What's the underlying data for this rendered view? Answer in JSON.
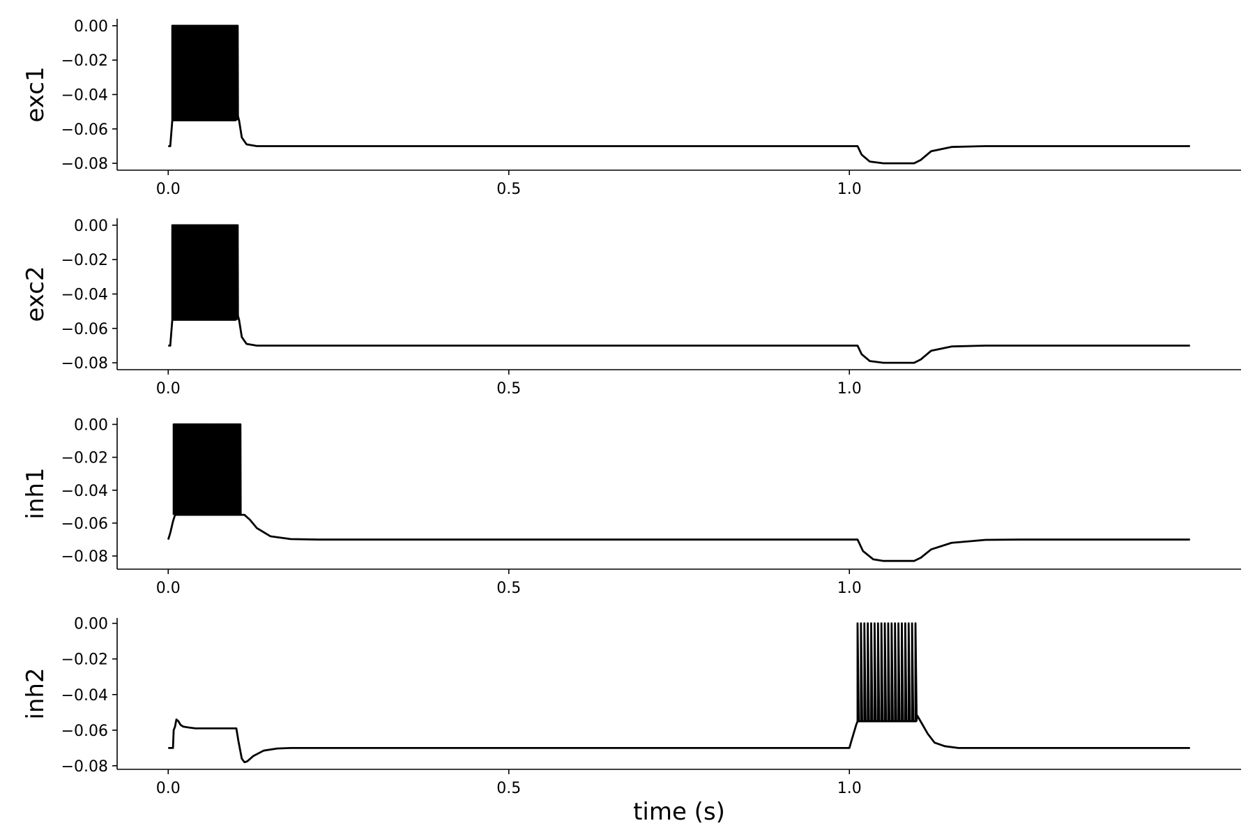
{
  "chart_data": [
    {
      "type": "line",
      "ylabel": "exc1",
      "xlabel": "",
      "xlim": [
        -0.075,
        1.575
      ],
      "ylim": [
        -0.084,
        0.004
      ],
      "xticks": [
        0.0,
        0.5,
        1.0
      ],
      "xtick_labels": [
        "0.0",
        "0.5",
        "1.0"
      ],
      "yticks": [
        0.0,
        -0.02,
        -0.04,
        -0.06,
        -0.08
      ],
      "ytick_labels": [
        "0.00",
        "−0.02",
        "−0.04",
        "−0.06",
        "−0.08"
      ],
      "series": [
        {
          "name": "exc1",
          "x": [
            0.0,
            0.003,
            0.006,
            0.01,
            0.099,
            0.102,
            0.104,
            0.108,
            0.115,
            0.13,
            1.0,
            1.012,
            1.018,
            1.03,
            1.05,
            1.08,
            1.095,
            1.105,
            1.12,
            1.15,
            1.2,
            1.5
          ],
          "y": [
            -0.07,
            -0.07,
            -0.055,
            -0.055,
            -0.055,
            -0.052,
            -0.055,
            -0.065,
            -0.069,
            -0.07,
            -0.07,
            -0.07,
            -0.075,
            -0.079,
            -0.08,
            -0.08,
            -0.08,
            -0.078,
            -0.073,
            -0.0705,
            -0.07,
            -0.07
          ]
        }
      ],
      "spike_bursts": [
        {
          "start": 0.006,
          "end": 0.102,
          "peak": 0.0,
          "trough": -0.055,
          "count": 90
        }
      ]
    },
    {
      "type": "line",
      "ylabel": "exc2",
      "xlabel": "",
      "xlim": [
        -0.075,
        1.575
      ],
      "ylim": [
        -0.084,
        0.004
      ],
      "xticks": [
        0.0,
        0.5,
        1.0
      ],
      "xtick_labels": [
        "0.0",
        "0.5",
        "1.0"
      ],
      "yticks": [
        0.0,
        -0.02,
        -0.04,
        -0.06,
        -0.08
      ],
      "ytick_labels": [
        "0.00",
        "−0.02",
        "−0.04",
        "−0.06",
        "−0.08"
      ],
      "series": [
        {
          "name": "exc2",
          "x": [
            0.0,
            0.003,
            0.006,
            0.01,
            0.099,
            0.102,
            0.104,
            0.108,
            0.115,
            0.13,
            1.0,
            1.012,
            1.018,
            1.03,
            1.05,
            1.08,
            1.095,
            1.105,
            1.12,
            1.15,
            1.2,
            1.5
          ],
          "y": [
            -0.07,
            -0.07,
            -0.055,
            -0.055,
            -0.055,
            -0.052,
            -0.055,
            -0.065,
            -0.069,
            -0.07,
            -0.07,
            -0.07,
            -0.075,
            -0.079,
            -0.08,
            -0.08,
            -0.08,
            -0.078,
            -0.073,
            -0.0705,
            -0.07,
            -0.07
          ]
        }
      ],
      "spike_bursts": [
        {
          "start": 0.006,
          "end": 0.102,
          "peak": 0.0,
          "trough": -0.055,
          "count": 90
        }
      ]
    },
    {
      "type": "line",
      "ylabel": "inh1",
      "xlabel": "",
      "xlim": [
        -0.075,
        1.575
      ],
      "ylim": [
        -0.088,
        0.004
      ],
      "xticks": [
        0.0,
        0.5,
        1.0
      ],
      "xtick_labels": [
        "0.0",
        "0.5",
        "1.0"
      ],
      "yticks": [
        0.0,
        -0.02,
        -0.04,
        -0.06,
        -0.08
      ],
      "ytick_labels": [
        "0.00",
        "−0.02",
        "−0.04",
        "−0.06",
        "−0.08"
      ],
      "series": [
        {
          "name": "inh1",
          "x": [
            0.0,
            0.003,
            0.007,
            0.01,
            0.106,
            0.112,
            0.12,
            0.13,
            0.15,
            0.18,
            0.22,
            1.0,
            1.012,
            1.02,
            1.035,
            1.05,
            1.08,
            1.095,
            1.105,
            1.12,
            1.15,
            1.2,
            1.25,
            1.5
          ],
          "y": [
            -0.07,
            -0.066,
            -0.059,
            -0.055,
            -0.055,
            -0.055,
            -0.058,
            -0.063,
            -0.068,
            -0.0697,
            -0.07,
            -0.07,
            -0.07,
            -0.077,
            -0.082,
            -0.083,
            -0.083,
            -0.083,
            -0.081,
            -0.076,
            -0.072,
            -0.0702,
            -0.07,
            -0.07
          ]
        }
      ],
      "spike_bursts": [
        {
          "start": 0.008,
          "end": 0.106,
          "peak": 0.0,
          "trough": -0.055,
          "count": 90
        }
      ]
    },
    {
      "type": "line",
      "ylabel": "inh2",
      "xlabel": "time (s)",
      "xlim": [
        -0.075,
        1.575
      ],
      "ylim": [
        -0.082,
        0.003
      ],
      "xticks": [
        0.0,
        0.5,
        1.0
      ],
      "xtick_labels": [
        "0.0",
        "0.5",
        "1.0"
      ],
      "yticks": [
        0.0,
        -0.02,
        -0.04,
        -0.06,
        -0.08
      ],
      "ytick_labels": [
        "0.00",
        "−0.02",
        "−0.04",
        "−0.06",
        "−0.08"
      ],
      "series": [
        {
          "name": "inh2",
          "x": [
            0.0,
            0.007,
            0.008,
            0.01,
            0.012,
            0.015,
            0.018,
            0.022,
            0.03,
            0.04,
            0.05,
            0.06,
            0.07,
            0.08,
            0.09,
            0.1,
            0.103,
            0.108,
            0.112,
            0.116,
            0.125,
            0.14,
            0.16,
            0.18,
            0.22,
            1.0,
            1.003,
            1.01,
            1.012,
            1.098,
            1.1,
            1.106,
            1.115,
            1.125,
            1.14,
            1.16,
            1.2,
            1.5
          ],
          "y": [
            -0.07,
            -0.07,
            -0.06,
            -0.058,
            -0.054,
            -0.055,
            -0.057,
            -0.058,
            -0.0585,
            -0.059,
            -0.059,
            -0.059,
            -0.059,
            -0.059,
            -0.059,
            -0.059,
            -0.066,
            -0.076,
            -0.078,
            -0.0775,
            -0.0745,
            -0.0715,
            -0.0703,
            -0.07,
            -0.07,
            -0.07,
            -0.066,
            -0.057,
            -0.055,
            -0.055,
            -0.052,
            -0.056,
            -0.062,
            -0.067,
            -0.069,
            -0.07,
            -0.07,
            -0.07
          ]
        }
      ],
      "spike_bursts": [
        {
          "start": 1.012,
          "end": 1.097,
          "peak": 0.0,
          "trough": -0.055,
          "count": 18
        }
      ]
    }
  ]
}
